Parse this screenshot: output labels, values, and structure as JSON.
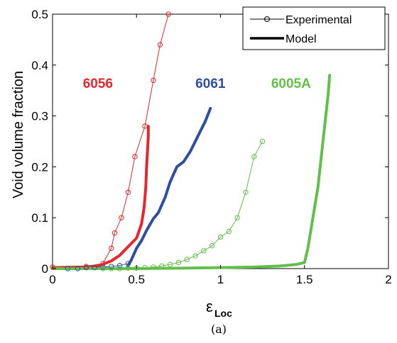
{
  "chart_data": {
    "type": "line",
    "title": "",
    "xlabel": "ε",
    "xlabel_subscript": "Loc",
    "ylabel": "Void volume fraction",
    "xlim": [
      0,
      2
    ],
    "ylim": [
      0,
      0.5
    ],
    "xticks": [
      "0",
      "0.5",
      "1",
      "1.5",
      "2"
    ],
    "yticks": [
      "0",
      "0.1",
      "0.2",
      "0.3",
      "0.4",
      "0.5"
    ],
    "grid": false,
    "legend": {
      "placement": "top-right",
      "entries": [
        {
          "label": "Experimental",
          "style": "thin line with open circles"
        },
        {
          "label": "Model",
          "style": "thick line"
        }
      ]
    },
    "caption": "(a)",
    "colors": {
      "6056": "#e8262b",
      "6061": "#2e4f9e",
      "6005A": "#62bf4a"
    },
    "series_labels": [
      {
        "text": "6056",
        "color": "#e8262b",
        "at": [
          0.27,
          0.355
        ]
      },
      {
        "text": "6061",
        "color": "#2e4f9e",
        "at": [
          0.94,
          0.355
        ]
      },
      {
        "text": "6005A",
        "color": "#62bf4a",
        "at": [
          1.42,
          0.355
        ]
      }
    ],
    "series": [
      {
        "name": "6056",
        "kind": "Experimental",
        "color": "#e8262b",
        "x": [
          0,
          0.2,
          0.3,
          0.35,
          0.37,
          0.41,
          0.45,
          0.49,
          0.55,
          0.6,
          0.64,
          0.69
        ],
        "y": [
          0.003,
          0.004,
          0.01,
          0.04,
          0.07,
          0.1,
          0.15,
          0.22,
          0.28,
          0.37,
          0.44,
          0.5
        ]
      },
      {
        "name": "6056",
        "kind": "Model",
        "color": "#e8262b",
        "x": [
          0,
          0.2,
          0.28,
          0.35,
          0.4,
          0.45,
          0.5,
          0.53,
          0.545,
          0.555,
          0.56,
          0.565,
          0.57,
          0.57
        ],
        "y": [
          0.002,
          0.003,
          0.006,
          0.015,
          0.026,
          0.043,
          0.06,
          0.088,
          0.12,
          0.16,
          0.2,
          0.23,
          0.26,
          0.28
        ]
      },
      {
        "name": "6061",
        "kind": "Experimental",
        "color": "#2e4f9e",
        "x": [
          0.09,
          0.15,
          0.2,
          0.25,
          0.3,
          0.35,
          0.4,
          0.45
        ],
        "y": [
          0.0,
          0.0,
          0.002,
          0.002,
          0.003,
          0.004,
          0.006,
          0.01
        ]
      },
      {
        "name": "6061",
        "kind": "Model",
        "color": "#2e4f9e",
        "x": [
          0.44,
          0.47,
          0.5,
          0.53,
          0.56,
          0.6,
          0.63,
          0.67,
          0.7,
          0.74,
          0.78,
          0.82,
          0.85,
          0.88,
          0.91,
          0.94
        ],
        "y": [
          0.0,
          0.018,
          0.04,
          0.055,
          0.075,
          0.098,
          0.11,
          0.14,
          0.17,
          0.2,
          0.21,
          0.23,
          0.25,
          0.27,
          0.29,
          0.315
        ]
      },
      {
        "name": "6005A",
        "kind": "Experimental",
        "color": "#62bf4a",
        "x": [
          0.3,
          0.35,
          0.4,
          0.45,
          0.5,
          0.55,
          0.6,
          0.65,
          0.7,
          0.75,
          0.8,
          0.85,
          0.9,
          0.95,
          1.0,
          1.05,
          1.1,
          1.15,
          1.2,
          1.25
        ],
        "y": [
          0.0,
          0.0,
          0.0,
          0.001,
          0.001,
          0.002,
          0.003,
          0.005,
          0.008,
          0.012,
          0.018,
          0.025,
          0.035,
          0.045,
          0.062,
          0.073,
          0.1,
          0.15,
          0.22,
          0.25
        ]
      },
      {
        "name": "6005A",
        "kind": "Model",
        "color": "#62bf4a",
        "x": [
          0,
          0.5,
          0.8,
          1.0,
          1.2,
          1.35,
          1.45,
          1.5,
          1.52,
          1.55,
          1.58,
          1.6,
          1.62,
          1.64,
          1.65
        ],
        "y": [
          0.0,
          0.0,
          0.001,
          0.002,
          0.003,
          0.005,
          0.008,
          0.012,
          0.04,
          0.1,
          0.16,
          0.22,
          0.28,
          0.34,
          0.38
        ]
      }
    ]
  }
}
